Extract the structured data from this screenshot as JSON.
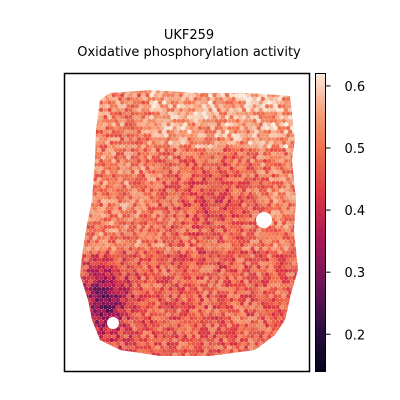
{
  "chart_data": {
    "type": "heatmap",
    "subtype": "spatial-spot-map",
    "title": "UKF259",
    "subtitle": "Oxidative phosphorylation activity",
    "xlabel": "",
    "ylabel": "",
    "colormap": "rocket",
    "colorbar": {
      "vmin": 0.14,
      "vmax": 0.62,
      "ticks": [
        0.2,
        0.3,
        0.4,
        0.5,
        0.6
      ],
      "tick_labels": [
        "0.2",
        "0.3",
        "0.4",
        "0.5",
        "0.6"
      ],
      "location": "right"
    },
    "value_range": [
      0.14,
      0.62
    ],
    "regions": [
      {
        "name": "upper-tissue",
        "typical_value": 0.52
      },
      {
        "name": "central-band",
        "typical_value": 0.4
      },
      {
        "name": "lower-left-edge",
        "typical_value": 0.22
      },
      {
        "name": "bottom-center",
        "typical_value": 0.46
      }
    ],
    "grid": false,
    "legend": "none"
  },
  "colors": {
    "background": "#ffffff",
    "frame": "#000000"
  }
}
